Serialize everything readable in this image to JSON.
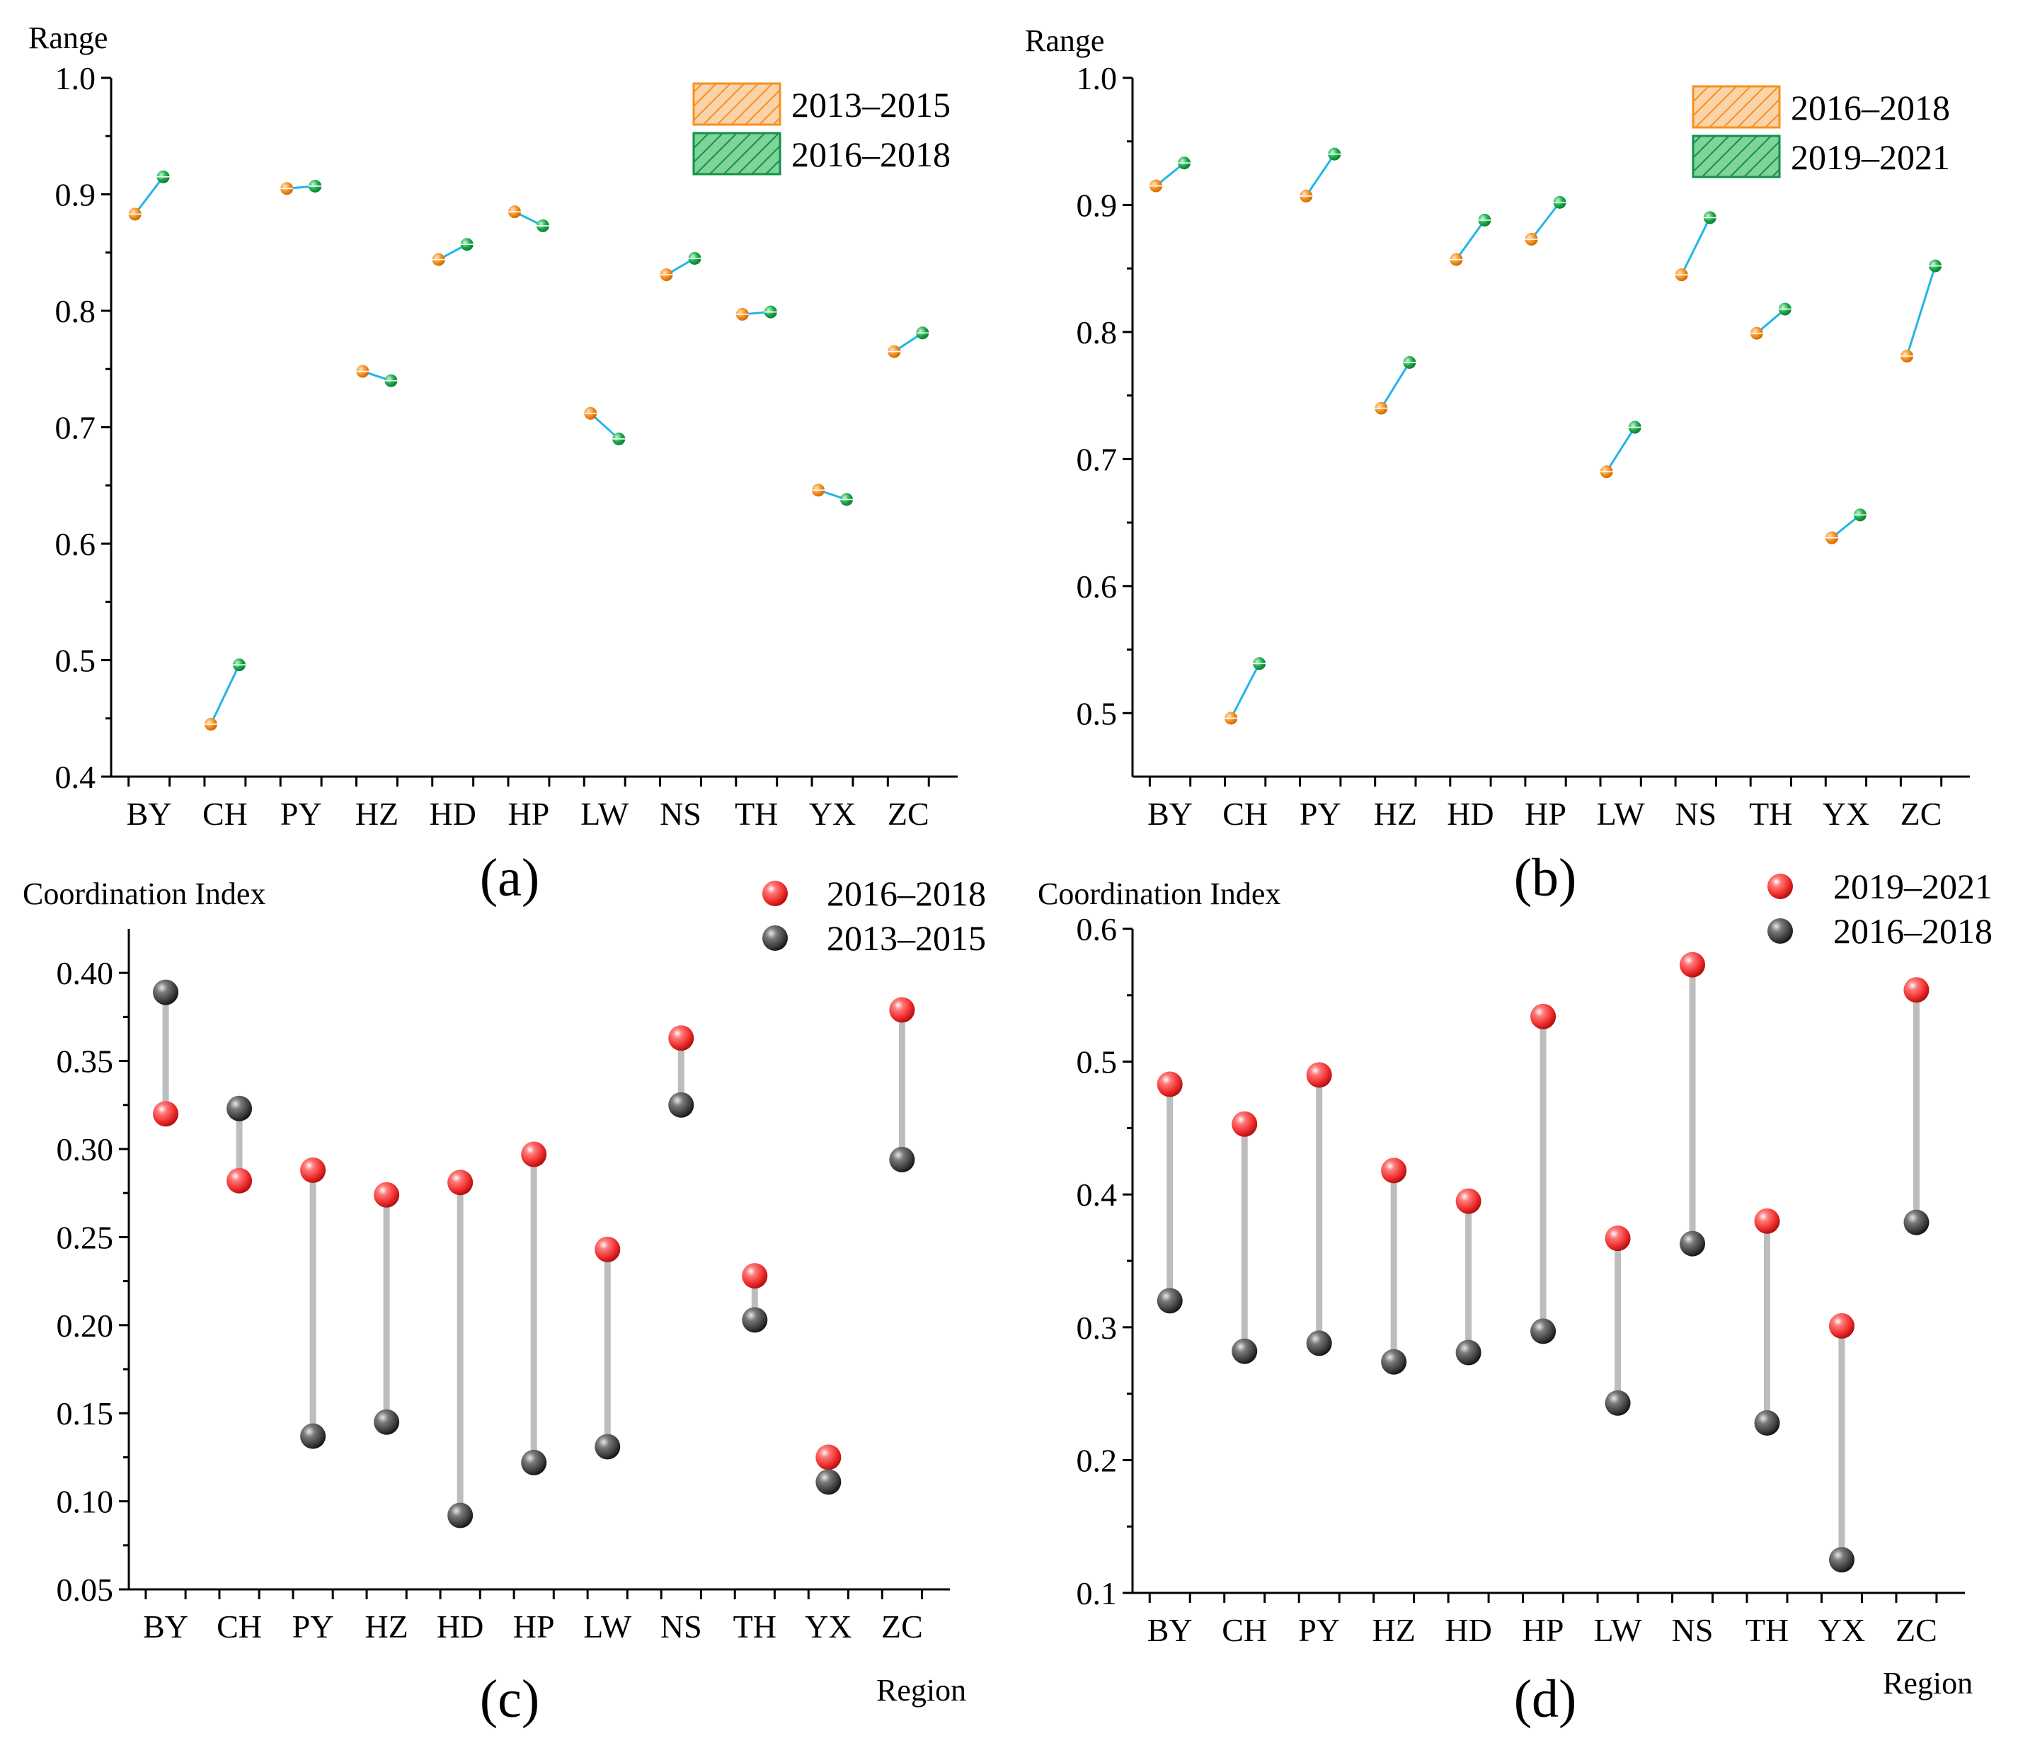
{
  "chart_data": [
    {
      "panel": "a",
      "label": "(a)",
      "type": "dumbbell",
      "ylabel": "Range",
      "xlabel": "",
      "ylim": [
        0.4,
        1.0
      ],
      "yticks": [
        "0.4",
        "0.5",
        "0.6",
        "0.7",
        "0.8",
        "0.9",
        "1.0"
      ],
      "categories": [
        "BY",
        "CH",
        "PY",
        "HZ",
        "HD",
        "HP",
        "LW",
        "NS",
        "TH",
        "YX",
        "ZC"
      ],
      "legend": "top-right",
      "series": [
        {
          "name": "2013–2015",
          "color": "#f7901e",
          "values": [
            0.883,
            0.445,
            0.905,
            0.748,
            0.844,
            0.885,
            0.712,
            0.831,
            0.797,
            0.646,
            0.765
          ]
        },
        {
          "name": "2016–2018",
          "color": "#18ad4a",
          "values": [
            0.915,
            0.496,
            0.907,
            0.74,
            0.857,
            0.873,
            0.69,
            0.845,
            0.799,
            0.638,
            0.781
          ]
        }
      ],
      "connector_color": "#22b5e8"
    },
    {
      "panel": "b",
      "label": "(b)",
      "type": "dumbbell",
      "ylabel": "Range",
      "xlabel": "",
      "ylim": [
        0.45,
        1.0
      ],
      "yticks": [
        "0.5",
        "0.6",
        "0.7",
        "0.8",
        "0.9",
        "1.0"
      ],
      "categories": [
        "BY",
        "CH",
        "PY",
        "HZ",
        "HD",
        "HP",
        "LW",
        "NS",
        "TH",
        "YX",
        "ZC"
      ],
      "legend": "top-right",
      "series": [
        {
          "name": "2016–2018",
          "color": "#f7901e",
          "values": [
            0.915,
            0.496,
            0.907,
            0.74,
            0.857,
            0.873,
            0.69,
            0.845,
            0.799,
            0.638,
            0.781
          ]
        },
        {
          "name": "2019–2021",
          "color": "#18ad4a",
          "values": [
            0.933,
            0.539,
            0.94,
            0.776,
            0.888,
            0.902,
            0.725,
            0.89,
            0.818,
            0.656,
            0.852
          ]
        }
      ],
      "connector_color": "#22b5e8"
    },
    {
      "panel": "c",
      "label": "(c)",
      "type": "dumbbell",
      "ylabel": "Coordination Index",
      "xlabel": "Region",
      "ylim": [
        0.05,
        0.425
      ],
      "yticks": [
        "0.05",
        "0.10",
        "0.15",
        "0.20",
        "0.25",
        "0.30",
        "0.35",
        "0.40"
      ],
      "categories": [
        "BY",
        "CH",
        "PY",
        "HZ",
        "HD",
        "HP",
        "LW",
        "NS",
        "TH",
        "YX",
        "ZC"
      ],
      "legend": "top-right",
      "series": [
        {
          "name": "2016–2018",
          "color": "#ee2a2a",
          "values": [
            0.32,
            0.282,
            0.288,
            0.274,
            0.281,
            0.297,
            0.243,
            0.363,
            0.228,
            0.125,
            0.379
          ]
        },
        {
          "name": "2013–2015",
          "color": "#3a3a3a",
          "values": [
            0.389,
            0.323,
            0.137,
            0.145,
            0.092,
            0.122,
            0.131,
            0.325,
            0.203,
            0.111,
            0.294
          ]
        }
      ],
      "connector_color": "#bdbdbd"
    },
    {
      "panel": "d",
      "label": "(d)",
      "type": "dumbbell",
      "ylabel": "Coordination Index",
      "xlabel": "Region",
      "ylim": [
        0.1,
        0.6
      ],
      "yticks": [
        "0.1",
        "0.2",
        "0.3",
        "0.4",
        "0.5",
        "0.6"
      ],
      "categories": [
        "BY",
        "CH",
        "PY",
        "HZ",
        "HD",
        "HP",
        "LW",
        "NS",
        "TH",
        "YX",
        "ZC"
      ],
      "legend": "top-right",
      "series": [
        {
          "name": "2019–2021",
          "color": "#ee2a2a",
          "values": [
            0.483,
            0.453,
            0.49,
            0.418,
            0.395,
            0.534,
            0.367,
            0.573,
            0.38,
            0.301,
            0.554
          ]
        },
        {
          "name": "2016–2018",
          "color": "#3a3a3a",
          "values": [
            0.32,
            0.282,
            0.288,
            0.274,
            0.281,
            0.297,
            0.243,
            0.363,
            0.228,
            0.125,
            0.379
          ]
        }
      ],
      "connector_color": "#bdbdbd"
    }
  ]
}
